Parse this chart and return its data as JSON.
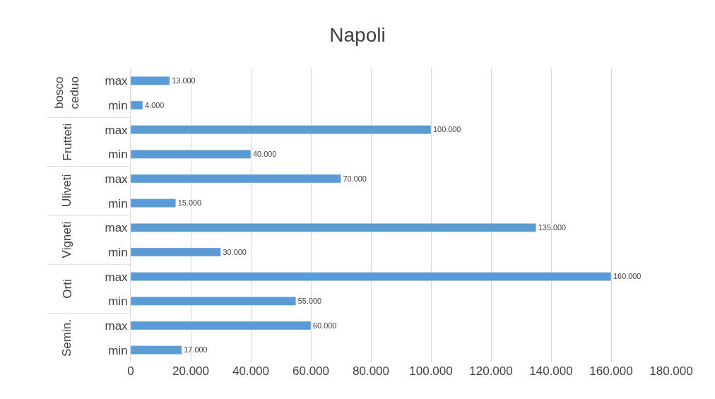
{
  "chart_data": {
    "type": "bar",
    "orientation": "horizontal",
    "title": "Napoli",
    "categories": [
      "max",
      "min",
      "max",
      "min",
      "max",
      "min",
      "max",
      "min",
      "max",
      "min",
      "max",
      "min"
    ],
    "values": [
      13000,
      4000,
      100000,
      40000,
      70000,
      15000,
      135000,
      30000,
      160000,
      55000,
      60000,
      17000
    ],
    "value_labels": [
      "13.000",
      "4.000",
      "100.000",
      "40.000",
      "70.000",
      "15.000",
      "135.000",
      "30.000",
      "160.000",
      "55.000",
      "60.000",
      "17.000"
    ],
    "annotations": [
      "bosco ceduo",
      "Frutteti",
      "Uliveti",
      "Vigneti",
      "Orti",
      "Semin."
    ],
    "color": "#5b9bd5",
    "xlim": [
      0,
      180000
    ],
    "xticks": [
      0,
      {
        "value": 20000,
        "label": "20.000"
      },
      {
        "value": 40000,
        "label": "40.000"
      },
      {
        "value": 60000,
        "label": "60.000"
      },
      {
        "value": 80000,
        "label": "80.000"
      },
      {
        "value": 100000,
        "label": "100.000"
      },
      {
        "value": 120000,
        "label": "120.000"
      },
      {
        "value": 140000,
        "label": "140.000"
      },
      {
        "value": 160000,
        "label": "160.000"
      },
      {
        "value": 180000,
        "label": "180.000"
      }
    ],
    "grid": "x",
    "legend": false
  }
}
